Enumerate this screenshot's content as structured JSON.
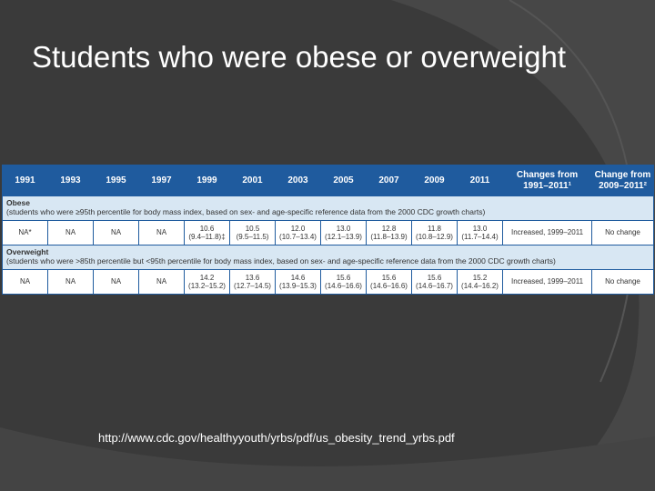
{
  "title": "Students who were obese or overweight",
  "table": {
    "header": [
      "1991",
      "1993",
      "1995",
      "1997",
      "1999",
      "2001",
      "2003",
      "2005",
      "2007",
      "2009",
      "2011",
      "Changes from 1991–2011¹",
      "Change from 2009–2011²"
    ],
    "sections": [
      {
        "label": "Obese",
        "description": "(students who were ≥95th percentile for body mass index, based on sex- and age-specific reference data from the 2000 CDC growth charts)",
        "cells": [
          {
            "value": "NA*"
          },
          {
            "value": "NA"
          },
          {
            "value": "NA"
          },
          {
            "value": "NA"
          },
          {
            "value": "10.6",
            "ci": "(9.4–11.8)‡"
          },
          {
            "value": "10.5",
            "ci": "(9.5–11.5)"
          },
          {
            "value": "12.0",
            "ci": "(10.7–13.4)"
          },
          {
            "value": "13.0",
            "ci": "(12.1–13.9)"
          },
          {
            "value": "12.8",
            "ci": "(11.8–13.9)"
          },
          {
            "value": "11.8",
            "ci": "(10.8–12.9)"
          },
          {
            "value": "13.0",
            "ci": "(11.7–14.4)"
          },
          {
            "value": "Increased, 1999–2011"
          },
          {
            "value": "No change"
          }
        ]
      },
      {
        "label": "Overweight",
        "description": "(students who were >85th percentile but <95th percentile for body mass index, based on sex- and age-specific reference data from the 2000 CDC growth charts)",
        "cells": [
          {
            "value": "NA"
          },
          {
            "value": "NA"
          },
          {
            "value": "NA"
          },
          {
            "value": "NA"
          },
          {
            "value": "14.2",
            "ci": "(13.2–15.2)"
          },
          {
            "value": "13.6",
            "ci": "(12.7–14.5)"
          },
          {
            "value": "14.6",
            "ci": "(13.9–15.3)"
          },
          {
            "value": "15.6",
            "ci": "(14.6–16.6)"
          },
          {
            "value": "15.6",
            "ci": "(14.6–16.6)"
          },
          {
            "value": "15.6",
            "ci": "(14.6–16.7)"
          },
          {
            "value": "15.2",
            "ci": "(14.4–16.2)"
          },
          {
            "value": "Increased, 1999–2011"
          },
          {
            "value": "No change"
          }
        ]
      }
    ]
  },
  "source": "http://www.cdc.gov/healthyyouth/yrbs/pdf/us_obesity_trend_yrbs.pdf"
}
